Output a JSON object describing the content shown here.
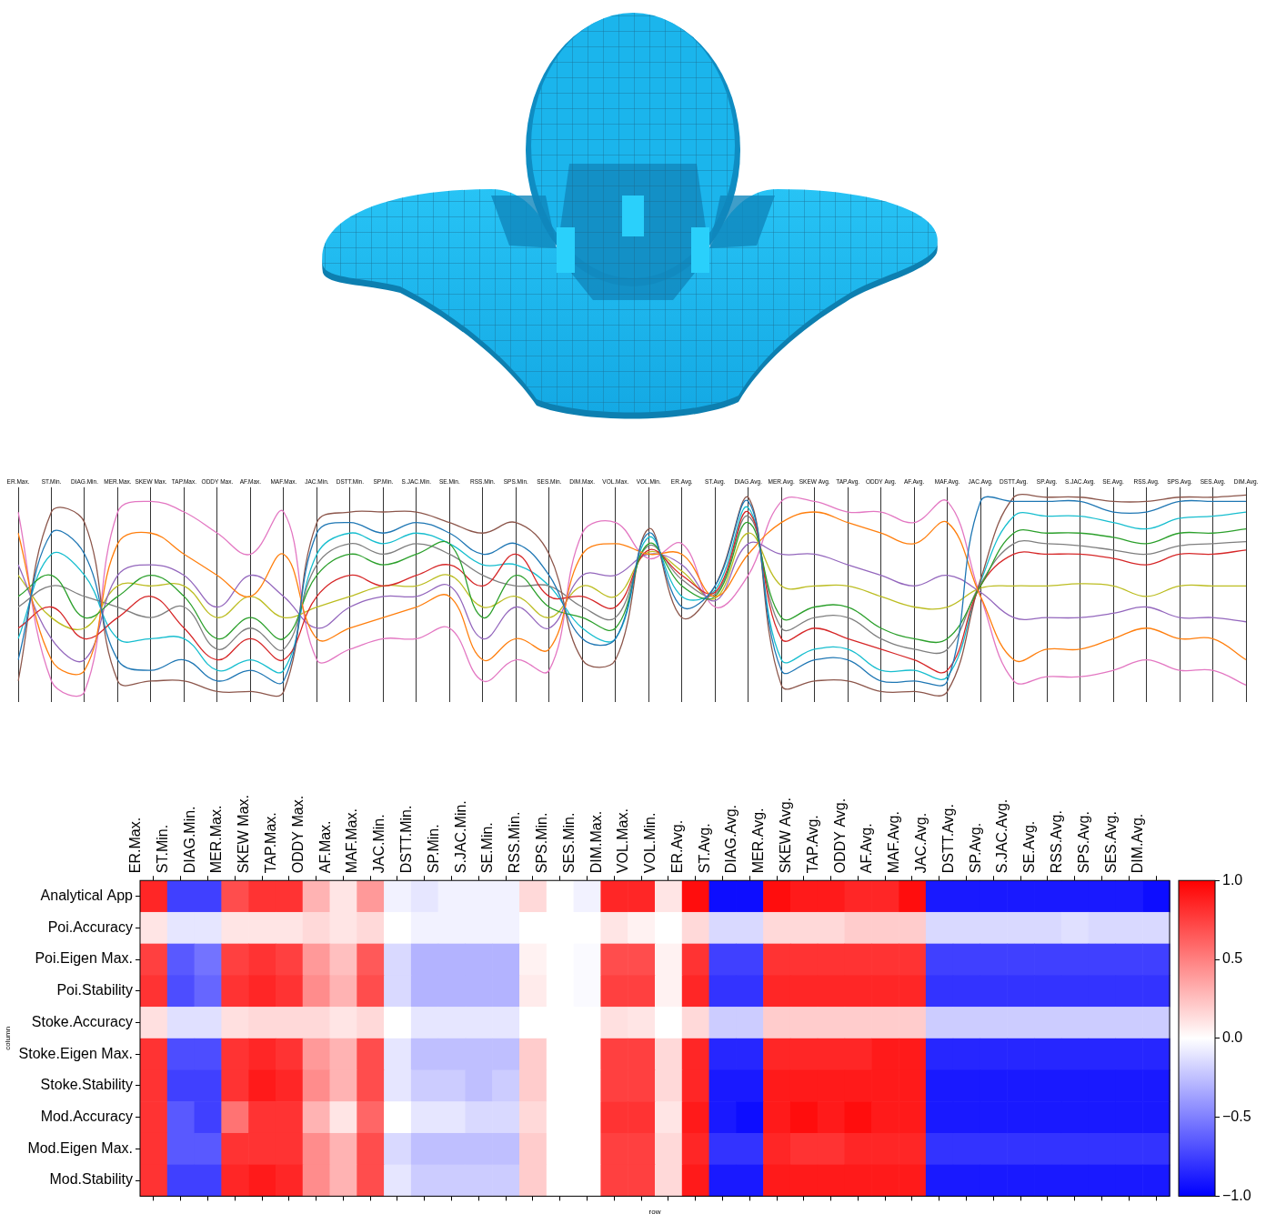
{
  "chart_data": [
    {
      "type": "parallel_coordinates",
      "categories": [
        "ER.Max.",
        "ST.Min.",
        "DIAG.Min.",
        "MER.Max.",
        "SKEW Max.",
        "TAP.Max.",
        "ODDY Max.",
        "AF.Max.",
        "MAF.Max.",
        "JAC.Min.",
        "DSTT.Min.",
        "SP.Min.",
        "S.JAC.Min.",
        "SE.Min.",
        "RSS.Min.",
        "SPS.Min.",
        "SES.Min.",
        "DIM.Max.",
        "VOL.Max.",
        "VOL.Min.",
        "ER.Avg.",
        "ST.Avg.",
        "DIAG.Avg.",
        "MER.Avg.",
        "SKEW Avg.",
        "TAP.Avg.",
        "ODDY Avg.",
        "AF.Avg.",
        "MAF.Avg.",
        "JAC.Avg.",
        "DSTT.Avg.",
        "SP.Avg.",
        "S.JAC.Avg.",
        "SE.Avg.",
        "RSS.Avg.",
        "SPS.Avg.",
        "SES.Avg.",
        "DIM.Avg."
      ],
      "ylim": [
        0,
        1
      ],
      "grid": true,
      "tick_labels": "x",
      "series": [
        {
          "color": "#1f77b4",
          "values": [
            0.2,
            0.8,
            0.7,
            0.2,
            0.15,
            0.2,
            0.1,
            0.15,
            0.1,
            0.8,
            0.85,
            0.8,
            0.85,
            0.8,
            0.7,
            0.75,
            0.6,
            0.3,
            0.3,
            0.8,
            0.45,
            0.55,
            0.95,
            0.15,
            0.2,
            0.2,
            0.1,
            0.1,
            0.1,
            0.95,
            0.95,
            0.95,
            0.95,
            0.9,
            0.9,
            0.95,
            0.95,
            0.95
          ]
        },
        {
          "color": "#ff7f0e",
          "values": [
            0.8,
            0.2,
            0.15,
            0.75,
            0.8,
            0.7,
            0.6,
            0.5,
            0.7,
            0.3,
            0.35,
            0.4,
            0.45,
            0.5,
            0.2,
            0.3,
            0.25,
            0.7,
            0.75,
            0.7,
            0.7,
            0.5,
            0.7,
            0.85,
            0.9,
            0.85,
            0.8,
            0.75,
            0.85,
            0.5,
            0.2,
            0.25,
            0.25,
            0.3,
            0.35,
            0.3,
            0.3,
            0.2
          ]
        },
        {
          "color": "#2ca02c",
          "values": [
            0.5,
            0.6,
            0.4,
            0.5,
            0.6,
            0.5,
            0.3,
            0.4,
            0.3,
            0.6,
            0.7,
            0.65,
            0.7,
            0.75,
            0.4,
            0.6,
            0.45,
            0.4,
            0.35,
            0.75,
            0.55,
            0.5,
            0.85,
            0.4,
            0.45,
            0.45,
            0.35,
            0.3,
            0.3,
            0.55,
            0.8,
            0.8,
            0.8,
            0.78,
            0.75,
            0.8,
            0.8,
            0.82
          ]
        },
        {
          "color": "#d62728",
          "values": [
            0.35,
            0.45,
            0.3,
            0.4,
            0.5,
            0.35,
            0.2,
            0.3,
            0.2,
            0.5,
            0.6,
            0.55,
            0.6,
            0.65,
            0.55,
            0.7,
            0.5,
            0.5,
            0.45,
            0.72,
            0.6,
            0.52,
            0.9,
            0.3,
            0.35,
            0.3,
            0.25,
            0.2,
            0.15,
            0.55,
            0.7,
            0.7,
            0.7,
            0.68,
            0.65,
            0.7,
            0.7,
            0.72
          ]
        },
        {
          "color": "#9467bd",
          "values": [
            0.65,
            0.3,
            0.2,
            0.6,
            0.65,
            0.6,
            0.45,
            0.6,
            0.5,
            0.35,
            0.45,
            0.5,
            0.5,
            0.55,
            0.3,
            0.45,
            0.35,
            0.6,
            0.6,
            0.7,
            0.65,
            0.48,
            0.75,
            0.7,
            0.7,
            0.65,
            0.6,
            0.55,
            0.6,
            0.52,
            0.4,
            0.4,
            0.4,
            0.42,
            0.45,
            0.4,
            0.4,
            0.38
          ]
        },
        {
          "color": "#8c564b",
          "values": [
            0.1,
            0.9,
            0.85,
            0.1,
            0.1,
            0.1,
            0.05,
            0.05,
            0.05,
            0.85,
            0.9,
            0.9,
            0.9,
            0.85,
            0.8,
            0.85,
            0.7,
            0.2,
            0.2,
            0.82,
            0.4,
            0.55,
            0.97,
            0.08,
            0.1,
            0.1,
            0.05,
            0.05,
            0.05,
            0.58,
            0.97,
            0.97,
            0.97,
            0.95,
            0.95,
            0.97,
            0.97,
            0.98
          ]
        },
        {
          "color": "#e377c2",
          "values": [
            0.9,
            0.1,
            0.05,
            0.9,
            0.95,
            0.9,
            0.8,
            0.7,
            0.9,
            0.2,
            0.25,
            0.3,
            0.3,
            0.35,
            0.1,
            0.2,
            0.15,
            0.8,
            0.85,
            0.68,
            0.75,
            0.45,
            0.6,
            0.95,
            0.95,
            0.9,
            0.9,
            0.85,
            0.95,
            0.5,
            0.1,
            0.12,
            0.12,
            0.15,
            0.2,
            0.15,
            0.15,
            0.08
          ]
        },
        {
          "color": "#7f7f7f",
          "values": [
            0.45,
            0.55,
            0.5,
            0.45,
            0.4,
            0.45,
            0.25,
            0.35,
            0.25,
            0.65,
            0.75,
            0.7,
            0.75,
            0.7,
            0.6,
            0.55,
            0.55,
            0.45,
            0.4,
            0.74,
            0.58,
            0.51,
            0.88,
            0.35,
            0.4,
            0.4,
            0.3,
            0.25,
            0.25,
            0.56,
            0.75,
            0.75,
            0.74,
            0.72,
            0.7,
            0.74,
            0.75,
            0.76
          ]
        },
        {
          "color": "#bcbd22",
          "values": [
            0.6,
            0.4,
            0.35,
            0.55,
            0.55,
            0.55,
            0.4,
            0.5,
            0.4,
            0.45,
            0.5,
            0.55,
            0.55,
            0.6,
            0.45,
            0.5,
            0.4,
            0.55,
            0.5,
            0.71,
            0.62,
            0.49,
            0.8,
            0.55,
            0.55,
            0.55,
            0.5,
            0.45,
            0.45,
            0.54,
            0.55,
            0.55,
            0.56,
            0.55,
            0.5,
            0.55,
            0.55,
            0.55
          ]
        },
        {
          "color": "#17becf",
          "values": [
            0.3,
            0.7,
            0.6,
            0.3,
            0.3,
            0.3,
            0.15,
            0.2,
            0.15,
            0.7,
            0.8,
            0.75,
            0.8,
            0.75,
            0.65,
            0.65,
            0.55,
            0.35,
            0.3,
            0.78,
            0.5,
            0.53,
            0.92,
            0.2,
            0.25,
            0.25,
            0.15,
            0.15,
            0.12,
            0.57,
            0.88,
            0.88,
            0.88,
            0.85,
            0.82,
            0.87,
            0.88,
            0.9
          ]
        }
      ]
    },
    {
      "type": "heatmap",
      "x_label": "row",
      "y_label": "column",
      "categories": [
        "ER.Max.",
        "ST.Min.",
        "DIAG.Min.",
        "MER.Max.",
        "SKEW Max.",
        "TAP.Max.",
        "ODDY Max.",
        "AF.Max.",
        "MAF.Max.",
        "JAC.Min.",
        "DSTT.Min.",
        "SP.Min.",
        "S.JAC.Min.",
        "SE.Min.",
        "RSS.Min.",
        "SPS.Min.",
        "SES.Min.",
        "DIM.Max.",
        "VOL.Max.",
        "VOL.Min.",
        "ER.Avg.",
        "ST.Avg.",
        "DIAG.Avg.",
        "MER.Avg.",
        "SKEW Avg.",
        "TAP.Avg.",
        "ODDY Avg.",
        "AF.Avg.",
        "MAF.Avg.",
        "JAC.Avg.",
        "DSTT.Avg.",
        "SP.Avg.",
        "S.JAC.Avg.",
        "SE.Avg.",
        "RSS.Avg.",
        "SPS.Avg.",
        "SES.Avg.",
        "DIM.Avg."
      ],
      "rows": [
        "Analytical App",
        "Poi.Accuracy",
        "Poi.Eigen Max.",
        "Poi.Stability",
        "Stoke.Accuracy",
        "Stoke.Eigen Max.",
        "Stoke.Stability",
        "Mod.Accuracy",
        "Mod.Eigen Max.",
        "Mod.Stability"
      ],
      "values": [
        [
          0.85,
          -0.75,
          -0.75,
          0.7,
          0.8,
          0.8,
          0.3,
          0.1,
          0.4,
          -0.05,
          -0.1,
          -0.05,
          -0.05,
          -0.05,
          0.15,
          0.0,
          -0.05,
          0.85,
          0.85,
          0.1,
          0.95,
          -0.95,
          -0.95,
          0.95,
          0.9,
          0.9,
          0.85,
          0.85,
          0.95,
          -0.9,
          -0.9,
          -0.9,
          -0.9,
          -0.9,
          -0.9,
          -0.9,
          -0.9,
          -0.95
        ],
        [
          0.1,
          -0.1,
          -0.1,
          0.1,
          0.1,
          0.1,
          0.15,
          0.1,
          0.15,
          0.0,
          -0.05,
          -0.05,
          -0.05,
          -0.05,
          0.0,
          0.0,
          0.0,
          0.1,
          0.05,
          0.0,
          0.15,
          -0.15,
          -0.15,
          0.15,
          0.15,
          0.15,
          0.2,
          0.2,
          0.2,
          -0.15,
          -0.15,
          -0.15,
          -0.15,
          -0.15,
          -0.12,
          -0.15,
          -0.15,
          -0.15
        ],
        [
          0.75,
          -0.65,
          -0.55,
          0.75,
          0.8,
          0.75,
          0.4,
          0.25,
          0.65,
          -0.15,
          -0.3,
          -0.3,
          -0.3,
          -0.3,
          0.05,
          0.0,
          -0.02,
          0.7,
          0.7,
          0.05,
          0.8,
          -0.75,
          -0.75,
          0.8,
          0.8,
          0.8,
          0.8,
          0.8,
          0.8,
          -0.75,
          -0.75,
          -0.75,
          -0.75,
          -0.75,
          -0.75,
          -0.75,
          -0.75,
          -0.75
        ],
        [
          0.8,
          -0.7,
          -0.6,
          0.8,
          0.85,
          0.8,
          0.45,
          0.3,
          0.7,
          -0.15,
          -0.3,
          -0.3,
          -0.3,
          -0.3,
          0.08,
          0.0,
          -0.02,
          0.75,
          0.75,
          0.05,
          0.85,
          -0.8,
          -0.8,
          0.85,
          0.85,
          0.85,
          0.85,
          0.85,
          0.85,
          -0.8,
          -0.8,
          -0.8,
          -0.8,
          -0.8,
          -0.8,
          -0.8,
          -0.8,
          -0.8
        ],
        [
          0.12,
          -0.12,
          -0.12,
          0.12,
          0.15,
          0.15,
          0.15,
          0.1,
          0.15,
          0.0,
          -0.1,
          -0.1,
          -0.1,
          -0.1,
          0.0,
          0.0,
          0.0,
          0.12,
          0.1,
          0.0,
          0.15,
          -0.2,
          -0.2,
          0.2,
          0.2,
          0.2,
          0.2,
          0.2,
          0.2,
          -0.2,
          -0.2,
          -0.2,
          -0.2,
          -0.2,
          -0.2,
          -0.2,
          -0.2,
          -0.2
        ],
        [
          0.8,
          -0.7,
          -0.7,
          0.8,
          0.85,
          0.8,
          0.4,
          0.3,
          0.7,
          -0.1,
          -0.25,
          -0.25,
          -0.25,
          -0.25,
          0.2,
          0.0,
          0.0,
          0.75,
          0.75,
          0.15,
          0.85,
          -0.85,
          -0.85,
          0.85,
          0.85,
          0.85,
          0.85,
          0.9,
          0.9,
          -0.85,
          -0.85,
          -0.85,
          -0.85,
          -0.85,
          -0.85,
          -0.85,
          -0.85,
          -0.85
        ],
        [
          0.8,
          -0.75,
          -0.75,
          0.8,
          0.9,
          0.85,
          0.45,
          0.3,
          0.7,
          -0.1,
          -0.2,
          -0.2,
          -0.25,
          -0.2,
          0.2,
          0.0,
          0.0,
          0.75,
          0.75,
          0.15,
          0.85,
          -0.9,
          -0.9,
          0.9,
          0.9,
          0.9,
          0.9,
          0.9,
          0.9,
          -0.9,
          -0.9,
          -0.9,
          -0.9,
          -0.9,
          -0.9,
          -0.9,
          -0.9,
          -0.9
        ],
        [
          0.8,
          -0.65,
          -0.75,
          0.55,
          0.8,
          0.8,
          0.3,
          0.1,
          0.6,
          0.0,
          -0.1,
          -0.1,
          -0.15,
          -0.15,
          0.15,
          0.0,
          0.0,
          0.8,
          0.8,
          0.1,
          0.9,
          -0.9,
          -0.95,
          0.9,
          0.95,
          0.9,
          0.95,
          0.9,
          0.9,
          -0.9,
          -0.9,
          -0.9,
          -0.9,
          -0.9,
          -0.9,
          -0.9,
          -0.9,
          -0.9
        ],
        [
          0.8,
          -0.65,
          -0.65,
          0.8,
          0.8,
          0.8,
          0.45,
          0.3,
          0.7,
          -0.15,
          -0.25,
          -0.25,
          -0.25,
          -0.25,
          0.2,
          0.0,
          0.0,
          0.75,
          0.75,
          0.15,
          0.85,
          -0.8,
          -0.8,
          0.85,
          0.8,
          0.8,
          0.85,
          0.85,
          0.85,
          -0.8,
          -0.8,
          -0.8,
          -0.8,
          -0.8,
          -0.8,
          -0.8,
          -0.8,
          -0.8
        ],
        [
          0.8,
          -0.75,
          -0.75,
          0.85,
          0.9,
          0.85,
          0.45,
          0.3,
          0.7,
          -0.1,
          -0.2,
          -0.2,
          -0.2,
          -0.2,
          0.2,
          0.0,
          0.0,
          0.75,
          0.75,
          0.15,
          0.9,
          -0.9,
          -0.9,
          0.9,
          0.9,
          0.9,
          0.9,
          0.9,
          0.9,
          -0.9,
          -0.9,
          -0.9,
          -0.9,
          -0.9,
          -0.9,
          -0.9,
          -0.9,
          -0.9
        ]
      ],
      "colorbar": {
        "range": [
          -1,
          1
        ],
        "ticks": [
          {
            "value": -1,
            "label": "−1.0"
          },
          {
            "value": -0.5,
            "label": "−0.5"
          },
          {
            "value": 0,
            "label": "0.0"
          },
          {
            "value": 0.5,
            "label": "0.5"
          },
          {
            "value": 1,
            "label": "1.0"
          }
        ]
      }
    }
  ]
}
